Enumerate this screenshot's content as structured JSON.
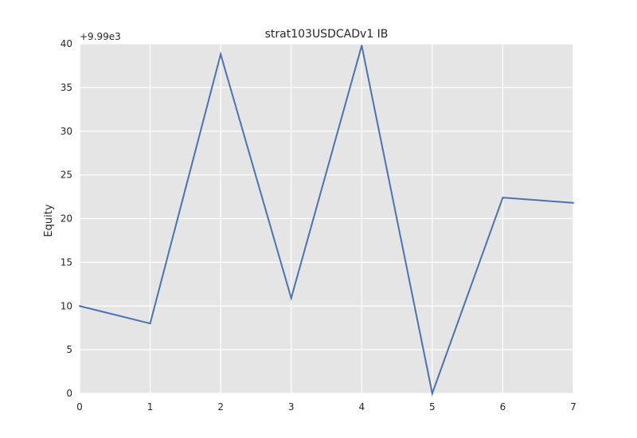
{
  "chart_data": {
    "type": "line",
    "title": "strat103USDCADv1 IB",
    "xlabel": "",
    "ylabel": "Equity",
    "y_offset_label": "+9.99e3",
    "xlim": [
      0,
      7
    ],
    "ylim": [
      0,
      40
    ],
    "x_ticks": [
      "0",
      "1",
      "2",
      "3",
      "4",
      "5",
      "6",
      "7"
    ],
    "y_ticks": [
      "0",
      "5",
      "10",
      "15",
      "20",
      "25",
      "30",
      "35",
      "40"
    ],
    "grid": true,
    "series": [
      {
        "color": "#4C72B0",
        "x": [
          0,
          1,
          2,
          3,
          4,
          5,
          6,
          7
        ],
        "values": [
          10.0,
          8.0,
          38.8,
          10.9,
          39.8,
          0.0,
          22.4,
          21.8
        ]
      }
    ]
  },
  "colors": {
    "plot_background": "#E5E5E5",
    "grid": "#FFFFFF",
    "line": "#4C72B0"
  }
}
